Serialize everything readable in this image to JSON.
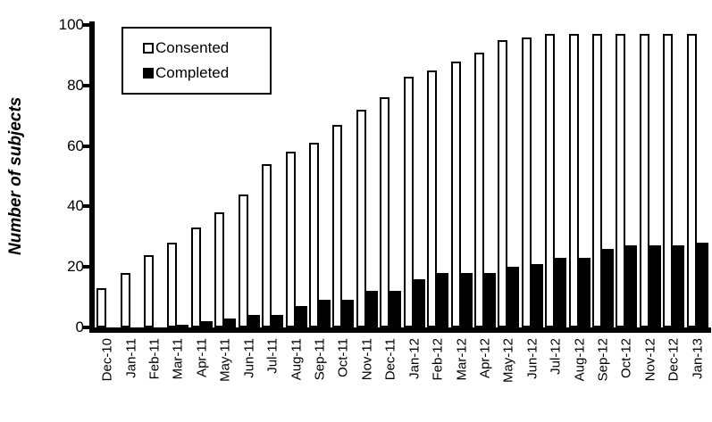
{
  "chart_data": {
    "type": "bar",
    "title": "",
    "xlabel": "",
    "ylabel": "Number of subjects",
    "ylim": [
      0,
      100
    ],
    "yticks": [
      0,
      20,
      40,
      60,
      80,
      100
    ],
    "grid": false,
    "legend_position": "top-left",
    "categories": [
      "Dec-10",
      "Jan-11",
      "Feb-11",
      "Mar-11",
      "Apr-11",
      "May-11",
      "Jun-11",
      "Jul-11",
      "Aug-11",
      "Sep-11",
      "Oct-11",
      "Nov-11",
      "Dec-11",
      "Jan-12",
      "Feb-12",
      "Mar-12",
      "Apr-12",
      "May-12",
      "Jun-12",
      "Jul-12",
      "Aug-12",
      "Sep-12",
      "Oct-12",
      "Nov-12",
      "Dec-12",
      "Jan-13"
    ],
    "series": [
      {
        "name": "Consented",
        "fill_color": "#ffffff",
        "border_color": "#000000",
        "values": [
          13,
          18,
          24,
          28,
          33,
          38,
          44,
          54,
          58,
          61,
          67,
          72,
          76,
          83,
          85,
          88,
          91,
          95,
          96,
          97,
          97,
          97,
          97,
          97,
          97,
          97
        ]
      },
      {
        "name": "Completed",
        "fill_color": "#000000",
        "border_color": "#000000",
        "values": [
          0,
          0,
          0,
          1,
          2,
          3,
          4,
          4,
          7,
          9,
          9,
          12,
          12,
          16,
          18,
          18,
          18,
          20,
          21,
          23,
          23,
          26,
          27,
          27,
          27,
          28
        ]
      }
    ]
  },
  "colors": {
    "axis": "#000000",
    "background": "#ffffff",
    "text": "#000000"
  }
}
